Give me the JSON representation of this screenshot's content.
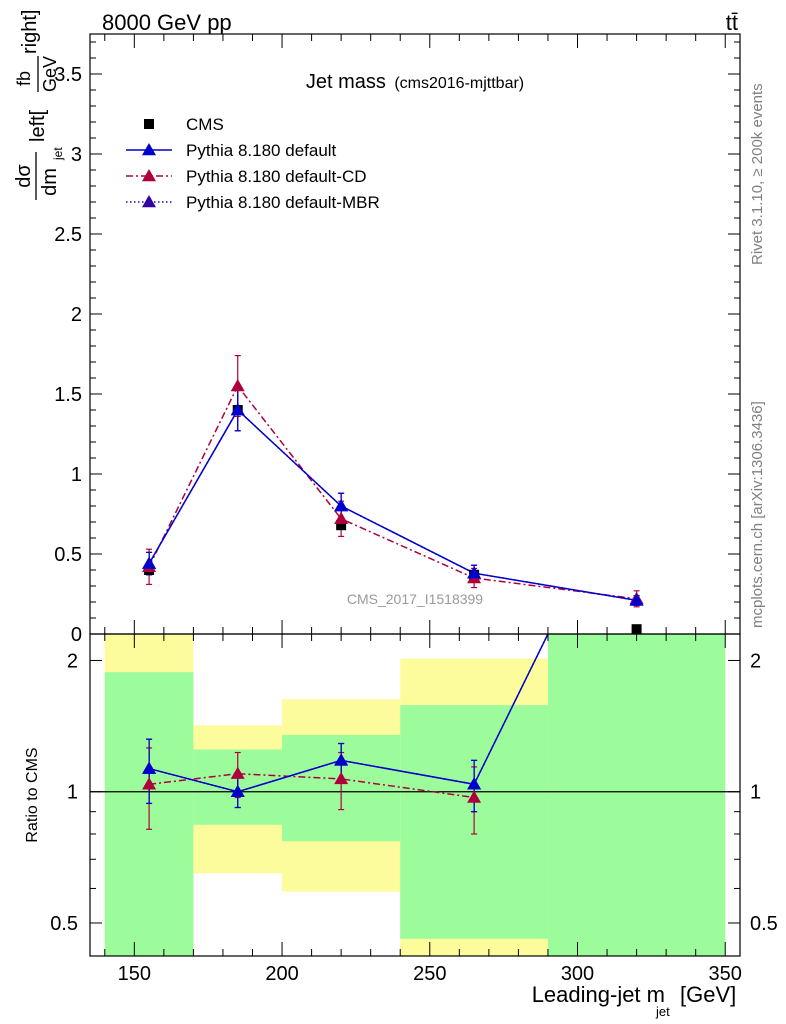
{
  "header": {
    "energy_label": "8000 GeV pp",
    "process_label": "tt̄",
    "rivet_label": "Rivet 3.1.10, ≥ 200k events",
    "mcplots_label": "mcplots.cern.ch [arXiv:1306.3436]",
    "watermark": "CMS_2017_I1518399"
  },
  "title": {
    "main": "Jet mass",
    "sub": "(cms2016-mjttbar)"
  },
  "colors": {
    "data": "#000000",
    "default": "#0000cc",
    "cd": "#b0003c",
    "mbr": "#3300aa",
    "band_inner": "#9cfc9c",
    "band_outer": "#fcfc9c"
  },
  "chart_data": [
    {
      "type": "line",
      "name": "main-panel",
      "title": "Jet mass (cms2016-mjttbar)",
      "ylabel_parts": {
        "num": "dσ",
        "den": "dm",
        "den_sub": "jet",
        "unit_pre": "left[",
        "unit_num": "fb",
        "unit_den": "GeV",
        "unit_post": "right]"
      },
      "xlim": [
        135,
        355
      ],
      "ylim": [
        0,
        3.75
      ],
      "yticks": [
        0,
        0.5,
        1,
        1.5,
        2,
        2.5,
        3,
        3.5
      ],
      "ytick_labels": [
        "0",
        "0.5",
        "1",
        "1.5",
        "2",
        "2.5",
        "3",
        "3.5"
      ],
      "legend_position": "top-left",
      "series": [
        {
          "name": "CMS",
          "style": "markers",
          "x": [
            155,
            185,
            220,
            265,
            320
          ],
          "y": [
            0.4,
            1.4,
            0.68,
            0.37,
            0.03
          ],
          "yerr": [
            0,
            0,
            0,
            0,
            0
          ]
        },
        {
          "name": "Pythia 8.180 default",
          "style": "solid",
          "x": [
            155,
            185,
            220,
            265,
            320
          ],
          "y": [
            0.44,
            1.4,
            0.8,
            0.38,
            0.21
          ],
          "yerr": [
            0.07,
            0.13,
            0.08,
            0.05,
            0.03
          ]
        },
        {
          "name": "Pythia 8.180 default-CD",
          "style": "dashdot",
          "x": [
            155,
            185,
            220,
            265,
            320
          ],
          "y": [
            0.42,
            1.55,
            0.72,
            0.35,
            0.22
          ],
          "yerr": [
            0.11,
            0.19,
            0.11,
            0.06,
            0.05
          ]
        },
        {
          "name": "Pythia 8.180 default-MBR",
          "style": "dotted",
          "x": [
            155,
            185,
            220,
            265,
            320
          ],
          "y": [
            0.44,
            1.4,
            0.8,
            0.38,
            0.21
          ],
          "yerr": [
            0.07,
            0.13,
            0.08,
            0.05,
            0.03
          ]
        }
      ]
    },
    {
      "type": "line",
      "name": "ratio-panel",
      "ylabel": "Ratio to CMS",
      "xlabel_main": "Leading-jet m",
      "xlabel_sub": "jet",
      "xlabel_unit": "[GeV]",
      "xlim": [
        135,
        355
      ],
      "ylim": [
        0.42,
        2.3
      ],
      "log_y": true,
      "xticks": [
        150,
        200,
        250,
        300,
        350
      ],
      "xtick_labels": [
        "150",
        "200",
        "250",
        "300",
        "350"
      ],
      "yticks": [
        0.5,
        1,
        2
      ],
      "ytick_labels": [
        "0.5",
        "1",
        "2"
      ],
      "bins": [
        {
          "lo": 140,
          "hi": 170,
          "inner": [
            0.42,
            1.88
          ],
          "outer": [
            0.42,
            2.3
          ]
        },
        {
          "lo": 170,
          "hi": 200,
          "inner": [
            0.84,
            1.25
          ],
          "outer": [
            0.65,
            1.42
          ]
        },
        {
          "lo": 200,
          "hi": 240,
          "inner": [
            0.77,
            1.35
          ],
          "outer": [
            0.59,
            1.63
          ]
        },
        {
          "lo": 240,
          "hi": 290,
          "inner": [
            0.46,
            1.58
          ],
          "outer": [
            0.42,
            2.02
          ]
        },
        {
          "lo": 290,
          "hi": 350,
          "inner": [
            0.42,
            2.3
          ],
          "outer": [
            0.42,
            2.3
          ]
        }
      ],
      "series": [
        {
          "name": "Pythia 8.180 default",
          "style": "solid",
          "x": [
            155,
            185,
            220,
            265,
            290
          ],
          "y": [
            1.13,
            1.0,
            1.18,
            1.04,
            2.3
          ],
          "yerr": [
            0.19,
            0.08,
            0.11,
            0.14,
            0
          ]
        },
        {
          "name": "Pythia 8.180 default-CD",
          "style": "dashdot",
          "x": [
            155,
            185,
            220,
            265
          ],
          "y": [
            1.04,
            1.1,
            1.07,
            0.97
          ],
          "yerr": [
            0.22,
            0.13,
            0.16,
            0.17
          ]
        },
        {
          "name": "Pythia 8.180 default-MBR",
          "style": "dotted",
          "x": [
            155,
            185,
            220,
            265,
            290
          ],
          "y": [
            1.13,
            1.0,
            1.18,
            1.04,
            2.3
          ],
          "yerr": [
            0.19,
            0.08,
            0.11,
            0.14,
            0
          ]
        }
      ]
    }
  ]
}
